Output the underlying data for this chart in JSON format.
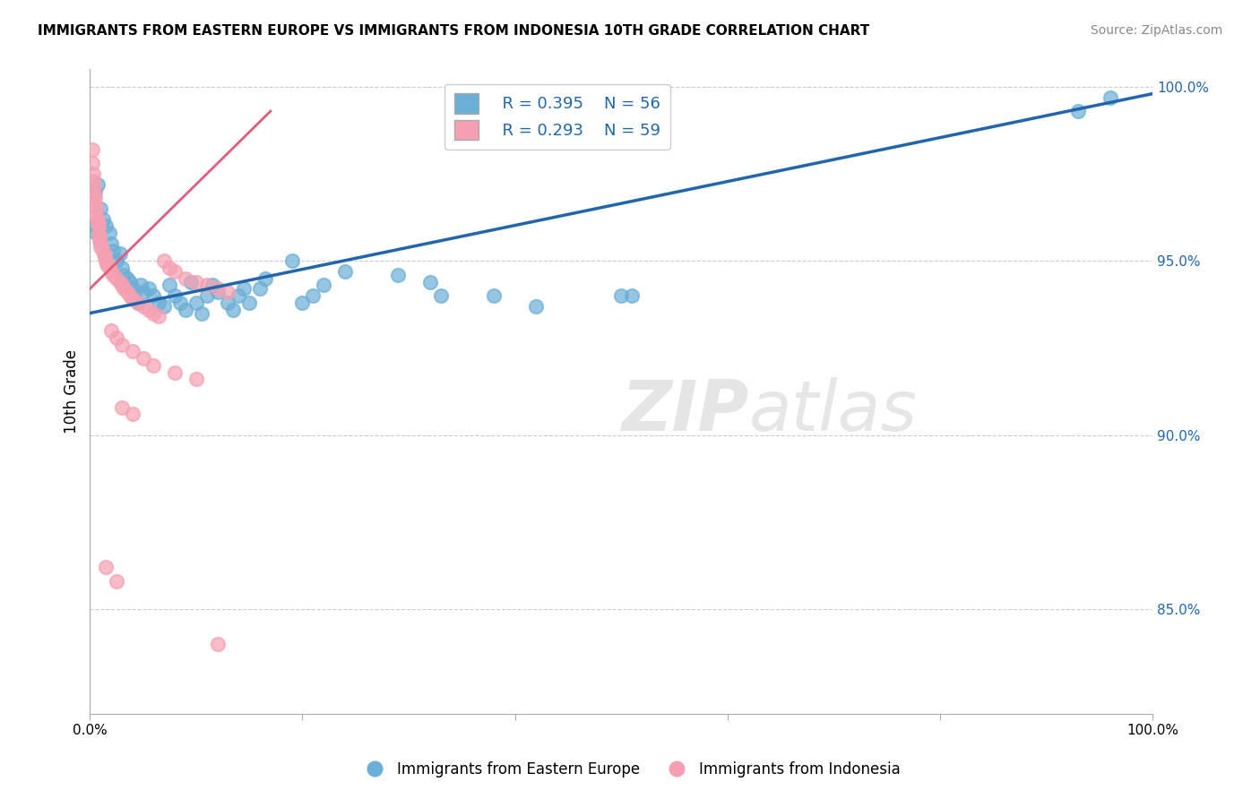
{
  "title": "IMMIGRANTS FROM EASTERN EUROPE VS IMMIGRANTS FROM INDONESIA 10TH GRADE CORRELATION CHART",
  "source": "Source: ZipAtlas.com",
  "ylabel": "10th Grade",
  "right_yticks": [
    "85.0%",
    "90.0%",
    "95.0%",
    "100.0%"
  ],
  "right_ytick_vals": [
    0.85,
    0.9,
    0.95,
    1.0
  ],
  "legend_blue_r": "R = 0.395",
  "legend_blue_n": "N = 56",
  "legend_pink_r": "R = 0.293",
  "legend_pink_n": "N = 59",
  "blue_color": "#6baed6",
  "pink_color": "#f4a0b0",
  "blue_line_color": "#2166ac",
  "pink_line_color": "#e05c7a",
  "watermark_zip": "ZIP",
  "watermark_atlas": "atlas",
  "blue_scatter": [
    [
      0.005,
      0.97
    ],
    [
      0.005,
      0.96
    ],
    [
      0.006,
      0.958
    ],
    [
      0.007,
      0.972
    ],
    [
      0.01,
      0.965
    ],
    [
      0.012,
      0.962
    ],
    [
      0.015,
      0.96
    ],
    [
      0.018,
      0.958
    ],
    [
      0.02,
      0.955
    ],
    [
      0.022,
      0.953
    ],
    [
      0.025,
      0.95
    ],
    [
      0.028,
      0.952
    ],
    [
      0.03,
      0.948
    ],
    [
      0.032,
      0.946
    ],
    [
      0.035,
      0.945
    ],
    [
      0.038,
      0.944
    ],
    [
      0.04,
      0.942
    ],
    [
      0.042,
      0.94
    ],
    [
      0.045,
      0.938
    ],
    [
      0.048,
      0.943
    ],
    [
      0.05,
      0.941
    ],
    [
      0.055,
      0.942
    ],
    [
      0.06,
      0.94
    ],
    [
      0.065,
      0.938
    ],
    [
      0.07,
      0.937
    ],
    [
      0.075,
      0.943
    ],
    [
      0.08,
      0.94
    ],
    [
      0.085,
      0.938
    ],
    [
      0.09,
      0.936
    ],
    [
      0.095,
      0.944
    ],
    [
      0.1,
      0.938
    ],
    [
      0.105,
      0.935
    ],
    [
      0.11,
      0.94
    ],
    [
      0.115,
      0.943
    ],
    [
      0.12,
      0.941
    ],
    [
      0.13,
      0.938
    ],
    [
      0.135,
      0.936
    ],
    [
      0.14,
      0.94
    ],
    [
      0.145,
      0.942
    ],
    [
      0.15,
      0.938
    ],
    [
      0.16,
      0.942
    ],
    [
      0.165,
      0.945
    ],
    [
      0.19,
      0.95
    ],
    [
      0.2,
      0.938
    ],
    [
      0.21,
      0.94
    ],
    [
      0.22,
      0.943
    ],
    [
      0.24,
      0.947
    ],
    [
      0.29,
      0.946
    ],
    [
      0.32,
      0.944
    ],
    [
      0.33,
      0.94
    ],
    [
      0.38,
      0.94
    ],
    [
      0.42,
      0.937
    ],
    [
      0.5,
      0.94
    ],
    [
      0.51,
      0.94
    ],
    [
      0.93,
      0.993
    ],
    [
      0.96,
      0.997
    ]
  ],
  "pink_scatter": [
    [
      0.002,
      0.982
    ],
    [
      0.002,
      0.978
    ],
    [
      0.003,
      0.975
    ],
    [
      0.003,
      0.973
    ],
    [
      0.004,
      0.971
    ],
    [
      0.004,
      0.969
    ],
    [
      0.005,
      0.968
    ],
    [
      0.005,
      0.966
    ],
    [
      0.006,
      0.965
    ],
    [
      0.006,
      0.963
    ],
    [
      0.007,
      0.962
    ],
    [
      0.007,
      0.961
    ],
    [
      0.008,
      0.96
    ],
    [
      0.008,
      0.958
    ],
    [
      0.009,
      0.957
    ],
    [
      0.009,
      0.956
    ],
    [
      0.01,
      0.955
    ],
    [
      0.01,
      0.954
    ],
    [
      0.012,
      0.953
    ],
    [
      0.013,
      0.952
    ],
    [
      0.014,
      0.951
    ],
    [
      0.015,
      0.95
    ],
    [
      0.016,
      0.949
    ],
    [
      0.018,
      0.948
    ],
    [
      0.02,
      0.947
    ],
    [
      0.022,
      0.946
    ],
    [
      0.025,
      0.945
    ],
    [
      0.028,
      0.944
    ],
    [
      0.03,
      0.943
    ],
    [
      0.032,
      0.942
    ],
    [
      0.035,
      0.941
    ],
    [
      0.038,
      0.94
    ],
    [
      0.04,
      0.939
    ],
    [
      0.045,
      0.938
    ],
    [
      0.05,
      0.937
    ],
    [
      0.055,
      0.936
    ],
    [
      0.06,
      0.935
    ],
    [
      0.065,
      0.934
    ],
    [
      0.07,
      0.95
    ],
    [
      0.075,
      0.948
    ],
    [
      0.08,
      0.947
    ],
    [
      0.09,
      0.945
    ],
    [
      0.1,
      0.944
    ],
    [
      0.11,
      0.943
    ],
    [
      0.12,
      0.942
    ],
    [
      0.13,
      0.941
    ],
    [
      0.02,
      0.93
    ],
    [
      0.025,
      0.928
    ],
    [
      0.03,
      0.926
    ],
    [
      0.04,
      0.924
    ],
    [
      0.05,
      0.922
    ],
    [
      0.06,
      0.92
    ],
    [
      0.08,
      0.918
    ],
    [
      0.1,
      0.916
    ],
    [
      0.03,
      0.908
    ],
    [
      0.04,
      0.906
    ],
    [
      0.015,
      0.862
    ],
    [
      0.025,
      0.858
    ],
    [
      0.12,
      0.84
    ]
  ],
  "xlim": [
    0.0,
    1.0
  ],
  "ylim": [
    0.82,
    1.005
  ],
  "blue_line_x": [
    0.0,
    1.0
  ],
  "blue_line_y": [
    0.935,
    0.998
  ],
  "pink_line_x": [
    0.0,
    0.17
  ],
  "pink_line_y": [
    0.942,
    0.993
  ]
}
